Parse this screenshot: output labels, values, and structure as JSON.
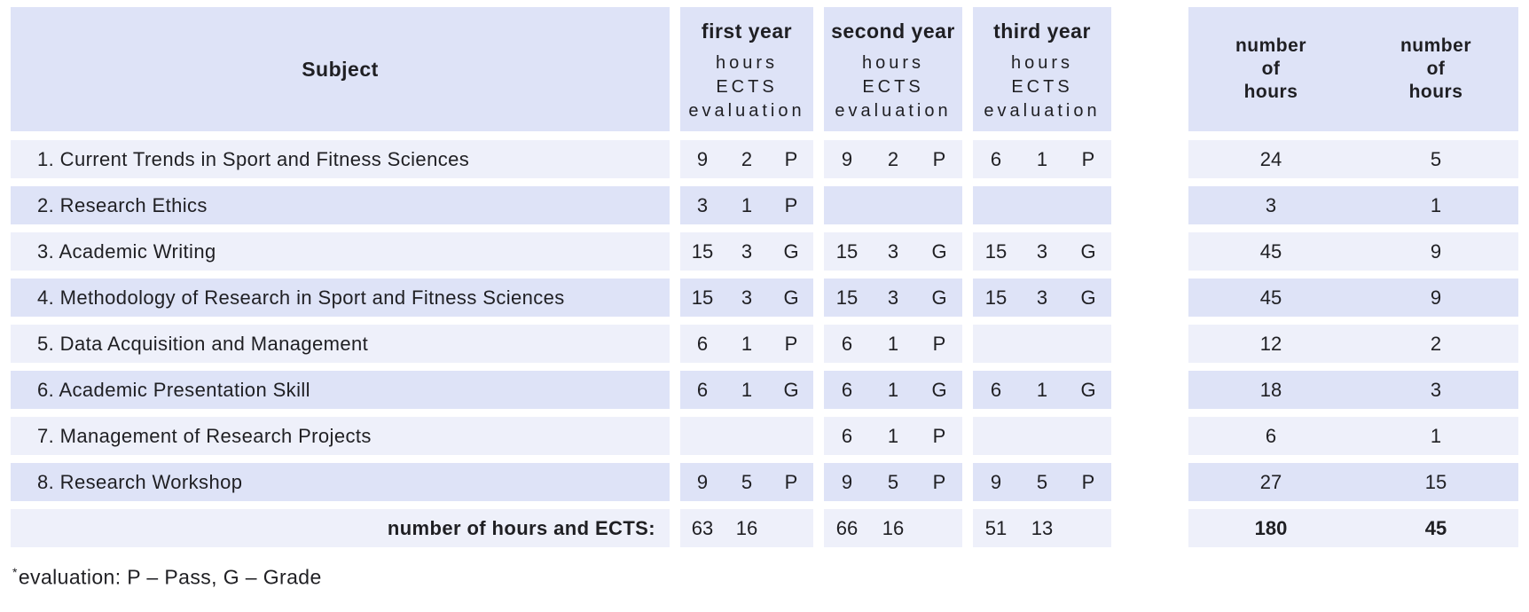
{
  "colors": {
    "row_light": "#eef0fa",
    "row_dark": "#dee3f7",
    "header_bg": "#dee3f7",
    "text": "#1f1f23",
    "page_bg": "#ffffff"
  },
  "header": {
    "subject_label": "Subject",
    "year_columns": [
      {
        "title": "first year",
        "lines": [
          "hours",
          "ECTS",
          "evaluation"
        ]
      },
      {
        "title": "second year",
        "lines": [
          "hours",
          "ECTS",
          "evaluation"
        ]
      },
      {
        "title": "third year",
        "lines": [
          "hours",
          "ECTS",
          "evaluation"
        ]
      }
    ],
    "total_columns": [
      {
        "lines": [
          "number",
          "of",
          "hours"
        ]
      },
      {
        "lines": [
          "number",
          "of",
          "hours"
        ]
      }
    ]
  },
  "rows": [
    {
      "subject": "1. Current Trends in Sport and Fitness Sciences",
      "years": [
        {
          "hours": "9",
          "ects": "2",
          "eval": "P"
        },
        {
          "hours": "9",
          "ects": "2",
          "eval": "P"
        },
        {
          "hours": "6",
          "ects": "1",
          "eval": "P"
        }
      ],
      "total_hours": "24",
      "total_ects": "5"
    },
    {
      "subject": "2. Research Ethics",
      "years": [
        {
          "hours": "3",
          "ects": "1",
          "eval": "P"
        },
        {
          "hours": "",
          "ects": "",
          "eval": ""
        },
        {
          "hours": "",
          "ects": "",
          "eval": ""
        }
      ],
      "total_hours": "3",
      "total_ects": "1"
    },
    {
      "subject": "3. Academic Writing",
      "years": [
        {
          "hours": "15",
          "ects": "3",
          "eval": "G"
        },
        {
          "hours": "15",
          "ects": "3",
          "eval": "G"
        },
        {
          "hours": "15",
          "ects": "3",
          "eval": "G"
        }
      ],
      "total_hours": "45",
      "total_ects": "9"
    },
    {
      "subject": "4. Methodology of Research in Sport and Fitness Sciences",
      "years": [
        {
          "hours": "15",
          "ects": "3",
          "eval": "G"
        },
        {
          "hours": "15",
          "ects": "3",
          "eval": "G"
        },
        {
          "hours": "15",
          "ects": "3",
          "eval": "G"
        }
      ],
      "total_hours": "45",
      "total_ects": "9"
    },
    {
      "subject": "5. Data Acquisition and Management",
      "years": [
        {
          "hours": "6",
          "ects": "1",
          "eval": "P"
        },
        {
          "hours": "6",
          "ects": "1",
          "eval": "P"
        },
        {
          "hours": "",
          "ects": "",
          "eval": ""
        }
      ],
      "total_hours": "12",
      "total_ects": "2"
    },
    {
      "subject": "6. Academic Presentation Skill",
      "years": [
        {
          "hours": "6",
          "ects": "1",
          "eval": "G"
        },
        {
          "hours": "6",
          "ects": "1",
          "eval": "G"
        },
        {
          "hours": "6",
          "ects": "1",
          "eval": "G"
        }
      ],
      "total_hours": "18",
      "total_ects": "3"
    },
    {
      "subject": "7. Management of Research Projects",
      "years": [
        {
          "hours": "",
          "ects": "",
          "eval": ""
        },
        {
          "hours": "6",
          "ects": "1",
          "eval": "P"
        },
        {
          "hours": "",
          "ects": "",
          "eval": ""
        }
      ],
      "total_hours": "6",
      "total_ects": "1"
    },
    {
      "subject": "8. Research Workshop",
      "years": [
        {
          "hours": "9",
          "ects": "5",
          "eval": "P"
        },
        {
          "hours": "9",
          "ects": "5",
          "eval": "P"
        },
        {
          "hours": "9",
          "ects": "5",
          "eval": "P"
        }
      ],
      "total_hours": "27",
      "total_ects": "15"
    }
  ],
  "totals_row": {
    "label": "number of hours and ECTS:",
    "years": [
      {
        "hours": "63",
        "ects": "16",
        "eval": ""
      },
      {
        "hours": "66",
        "ects": "16",
        "eval": ""
      },
      {
        "hours": "51",
        "ects": "13",
        "eval": ""
      }
    ],
    "total_hours": "180",
    "total_ects": "45"
  },
  "footnote": {
    "marker": "*",
    "text": "evaluation: P – Pass, G – Grade"
  }
}
